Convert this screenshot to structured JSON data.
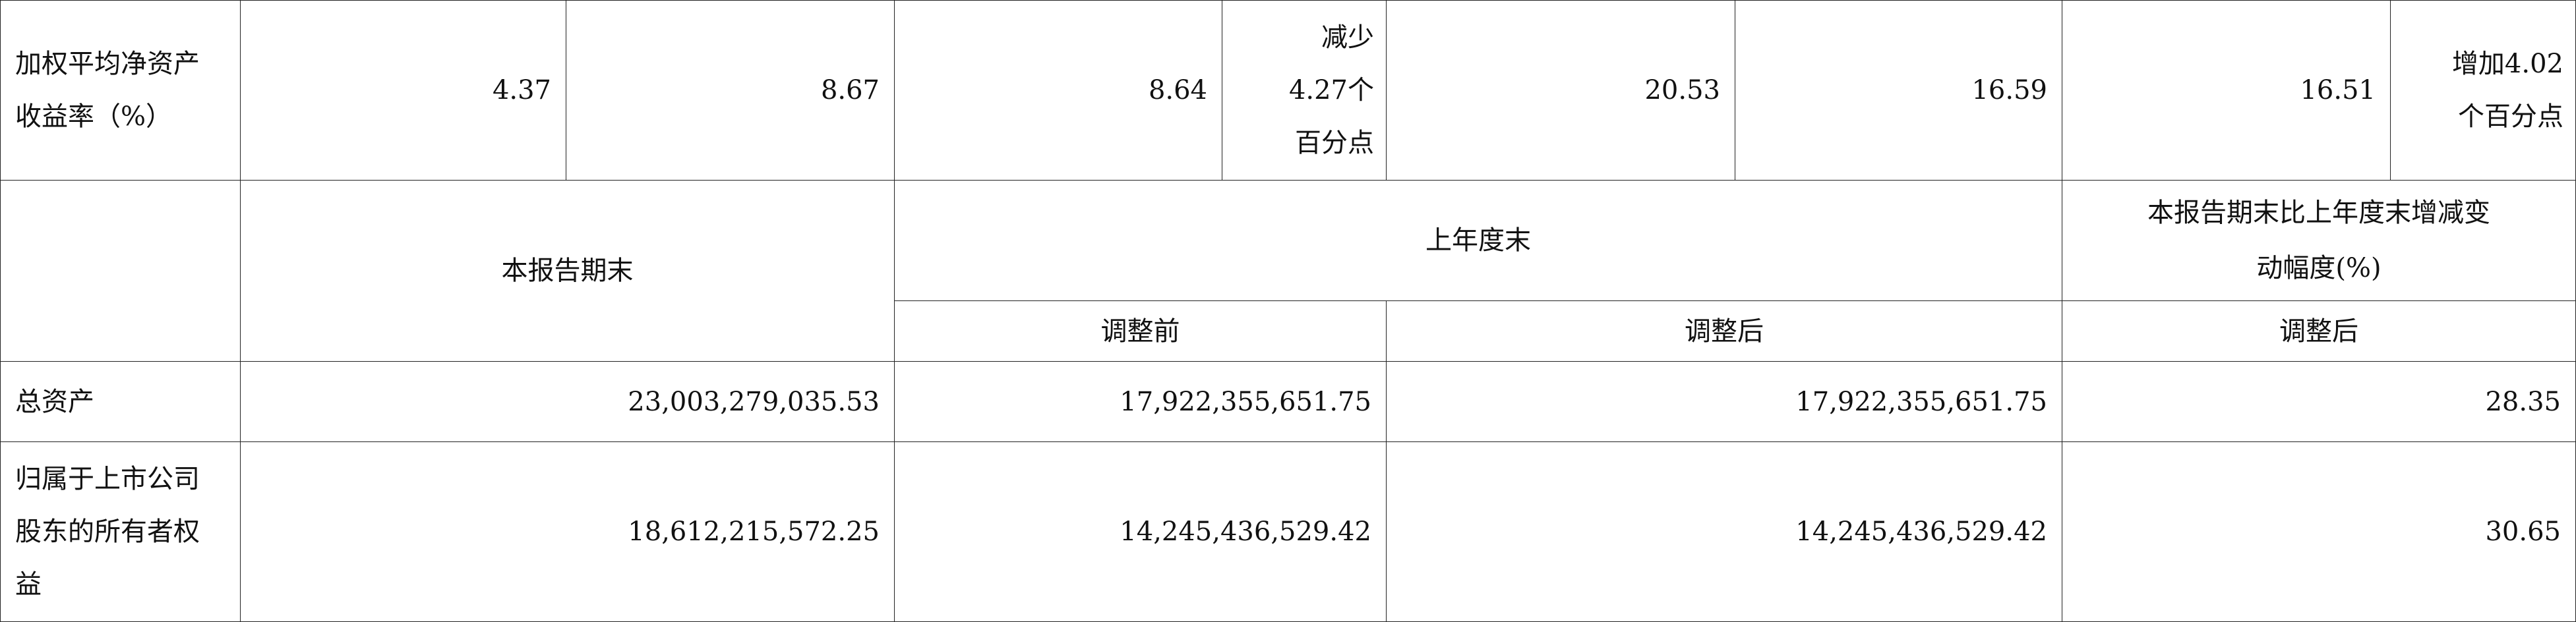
{
  "row_roe": {
    "label": "加权平均净资产\n收益率（%）",
    "values": [
      "4.37",
      "8.67",
      "8.64",
      "减少\n4.27个\n百分点",
      "20.53",
      "16.59",
      "16.51",
      "增加4.02\n个百分点"
    ]
  },
  "header": {
    "current_period_end": "本报告期末",
    "prior_year_end": "上年度末",
    "before_adjustment": "调整前",
    "after_adjustment": "调整后",
    "change_label": "本报告期末比上年度末增减变\n动幅度(%)",
    "change_after_adjustment": "调整后"
  },
  "rows": [
    {
      "label": "总资产",
      "current": "23,003,279,035.53",
      "before": "17,922,355,651.75",
      "after": "17,922,355,651.75",
      "change": "28.35"
    },
    {
      "label": "归属于上市公司\n股东的所有者权\n益",
      "current": "18,612,215,572.25",
      "before": "14,245,436,529.42",
      "after": "14,245,436,529.42",
      "change": "30.65"
    }
  ]
}
